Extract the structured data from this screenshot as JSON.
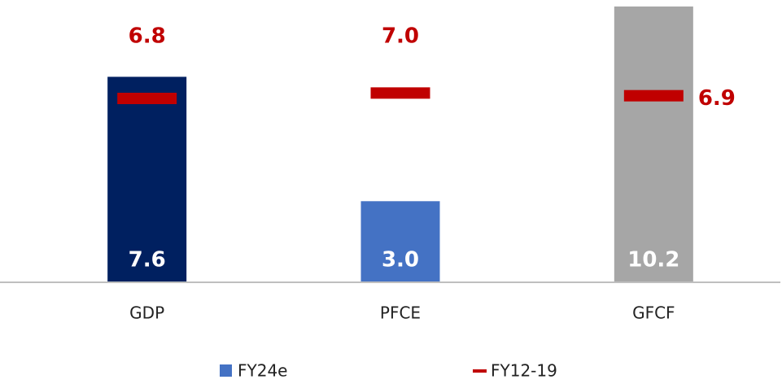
{
  "chart_data": {
    "type": "bar",
    "categories": [
      "GDP",
      "PFCE",
      "GFCF"
    ],
    "series": [
      {
        "name": "FY24e",
        "color": "#4472c4",
        "colors": [
          "#002060",
          "#4472c4",
          "#a6a6a6"
        ],
        "values": [
          7.6,
          3.0,
          10.2
        ],
        "value_labels": [
          "7.6",
          "3.0",
          "10.2"
        ]
      },
      {
        "name": "FY12-19",
        "color": "#c00000",
        "values": [
          6.8,
          7.0,
          6.9
        ],
        "value_labels": [
          "6.8",
          "7.0",
          "6.9"
        ]
      }
    ],
    "ylim": [
      0,
      10.2
    ],
    "legend": "bottom"
  }
}
